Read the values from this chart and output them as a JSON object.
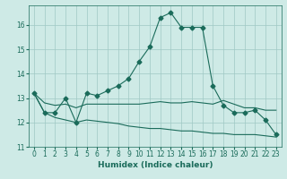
{
  "xlabel": "Humidex (Indice chaleur)",
  "background_color": "#ceeae6",
  "grid_color": "#a0c8c4",
  "line_color": "#1a6b5a",
  "xlim": [
    -0.5,
    23.5
  ],
  "ylim": [
    11.0,
    16.8
  ],
  "yticks": [
    11,
    12,
    13,
    14,
    15,
    16
  ],
  "xticks": [
    0,
    1,
    2,
    3,
    4,
    5,
    6,
    7,
    8,
    9,
    10,
    11,
    12,
    13,
    14,
    15,
    16,
    17,
    18,
    19,
    20,
    21,
    22,
    23
  ],
  "series1_x": [
    0,
    1,
    2,
    3,
    4,
    5,
    6,
    7,
    8,
    9,
    10,
    11,
    12,
    13,
    14,
    15,
    16,
    17,
    18,
    19,
    20,
    21,
    22,
    23
  ],
  "series1_y": [
    13.2,
    12.4,
    12.4,
    13.0,
    12.0,
    13.2,
    13.1,
    13.3,
    13.5,
    13.8,
    14.5,
    15.1,
    16.3,
    16.5,
    15.9,
    15.9,
    15.9,
    13.5,
    12.7,
    12.4,
    12.4,
    12.5,
    12.1,
    11.5
  ],
  "series2_x": [
    0,
    1,
    2,
    3,
    4,
    5,
    6,
    7,
    8,
    9,
    10,
    11,
    12,
    13,
    14,
    15,
    16,
    17,
    18,
    19,
    20,
    21,
    22,
    23
  ],
  "series2_y": [
    13.2,
    12.8,
    12.7,
    12.75,
    12.6,
    12.75,
    12.75,
    12.75,
    12.75,
    12.75,
    12.75,
    12.8,
    12.85,
    12.8,
    12.8,
    12.85,
    12.8,
    12.75,
    12.9,
    12.75,
    12.6,
    12.6,
    12.5,
    12.5
  ],
  "series3_x": [
    0,
    1,
    2,
    3,
    4,
    5,
    6,
    7,
    8,
    9,
    10,
    11,
    12,
    13,
    14,
    15,
    16,
    17,
    18,
    19,
    20,
    21,
    22,
    23
  ],
  "series3_y": [
    13.2,
    12.4,
    12.2,
    12.1,
    12.0,
    12.1,
    12.05,
    12.0,
    11.95,
    11.85,
    11.8,
    11.75,
    11.75,
    11.7,
    11.65,
    11.65,
    11.6,
    11.55,
    11.55,
    11.5,
    11.5,
    11.5,
    11.45,
    11.4
  ],
  "marker_style": "D",
  "marker_size": 2.5,
  "line_width": 0.8,
  "tick_fontsize": 5.5,
  "xlabel_fontsize": 6.5
}
